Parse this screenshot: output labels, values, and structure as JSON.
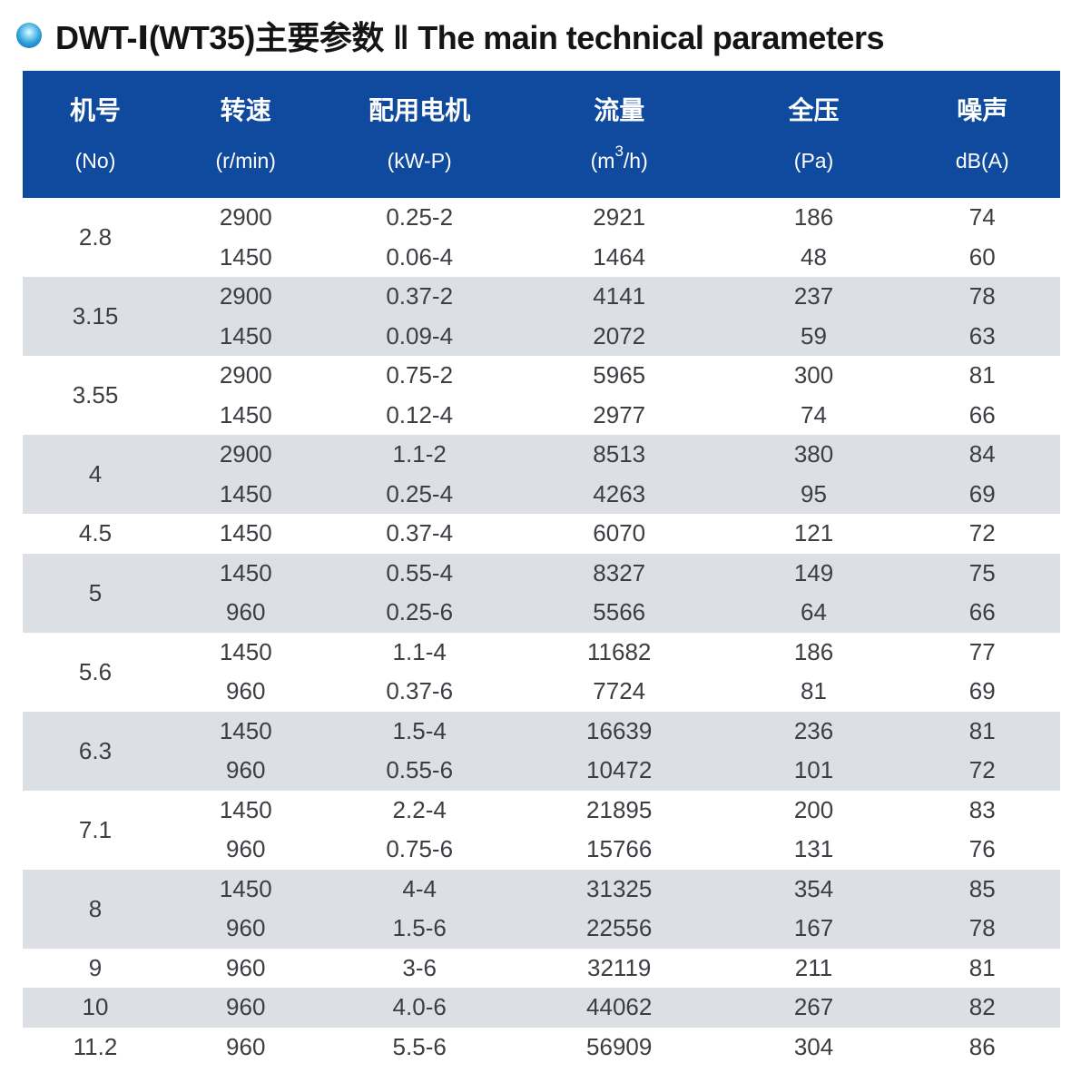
{
  "title": {
    "cn": "DWT-Ⅰ(WT35)主要参数",
    "separator": "‖",
    "en": "The main technical parameters"
  },
  "table": {
    "columns": [
      {
        "label": "机号",
        "unit": "(No)"
      },
      {
        "label": "转速",
        "unit": "(r/min)"
      },
      {
        "label": "配用电机",
        "unit": "(kW-P)"
      },
      {
        "label": "流量",
        "unit_pre": "(m",
        "unit_sup": "3",
        "unit_post": "/h)"
      },
      {
        "label": "全压",
        "unit": "(Pa)"
      },
      {
        "label": "噪声",
        "unit": "dB(A)"
      }
    ],
    "groups": [
      {
        "no": "2.8",
        "rows": [
          [
            "2900",
            "0.25-2",
            "2921",
            "186",
            "74"
          ],
          [
            "1450",
            "0.06-4",
            "1464",
            "48",
            "60"
          ]
        ]
      },
      {
        "no": "3.15",
        "rows": [
          [
            "2900",
            "0.37-2",
            "4141",
            "237",
            "78"
          ],
          [
            "1450",
            "0.09-4",
            "2072",
            "59",
            "63"
          ]
        ]
      },
      {
        "no": "3.55",
        "rows": [
          [
            "2900",
            "0.75-2",
            "5965",
            "300",
            "81"
          ],
          [
            "1450",
            "0.12-4",
            "2977",
            "74",
            "66"
          ]
        ]
      },
      {
        "no": "4",
        "rows": [
          [
            "2900",
            "1.1-2",
            "8513",
            "380",
            "84"
          ],
          [
            "1450",
            "0.25-4",
            "4263",
            "95",
            "69"
          ]
        ]
      },
      {
        "no": "4.5",
        "rows": [
          [
            "1450",
            "0.37-4",
            "6070",
            "121",
            "72"
          ]
        ]
      },
      {
        "no": "5",
        "rows": [
          [
            "1450",
            "0.55-4",
            "8327",
            "149",
            "75"
          ],
          [
            "960",
            "0.25-6",
            "5566",
            "64",
            "66"
          ]
        ]
      },
      {
        "no": "5.6",
        "rows": [
          [
            "1450",
            "1.1-4",
            "11682",
            "186",
            "77"
          ],
          [
            "960",
            "0.37-6",
            "7724",
            "81",
            "69"
          ]
        ]
      },
      {
        "no": "6.3",
        "rows": [
          [
            "1450",
            "1.5-4",
            "16639",
            "236",
            "81"
          ],
          [
            "960",
            "0.55-6",
            "10472",
            "101",
            "72"
          ]
        ]
      },
      {
        "no": "7.1",
        "rows": [
          [
            "1450",
            "2.2-4",
            "21895",
            "200",
            "83"
          ],
          [
            "960",
            "0.75-6",
            "15766",
            "131",
            "76"
          ]
        ]
      },
      {
        "no": "8",
        "rows": [
          [
            "1450",
            "4-4",
            "31325",
            "354",
            "85"
          ],
          [
            "960",
            "1.5-6",
            "22556",
            "167",
            "78"
          ]
        ]
      },
      {
        "no": "9",
        "rows": [
          [
            "960",
            "3-6",
            "32119",
            "211",
            "81"
          ]
        ]
      },
      {
        "no": "10",
        "rows": [
          [
            "960",
            "4.0-6",
            "44062",
            "267",
            "82"
          ]
        ]
      },
      {
        "no": "11.2",
        "rows": [
          [
            "960",
            "5.5-6",
            "56909",
            "304",
            "86"
          ]
        ]
      }
    ]
  },
  "colors": {
    "header_bg": "#104a9e",
    "header_text": "#ffffff",
    "row_bg": "#ffffff",
    "row_alt_bg": "#dce0e4",
    "body_text": "#3b3e42",
    "title_text": "#141414",
    "bullet_blue": "#0a62b0"
  }
}
